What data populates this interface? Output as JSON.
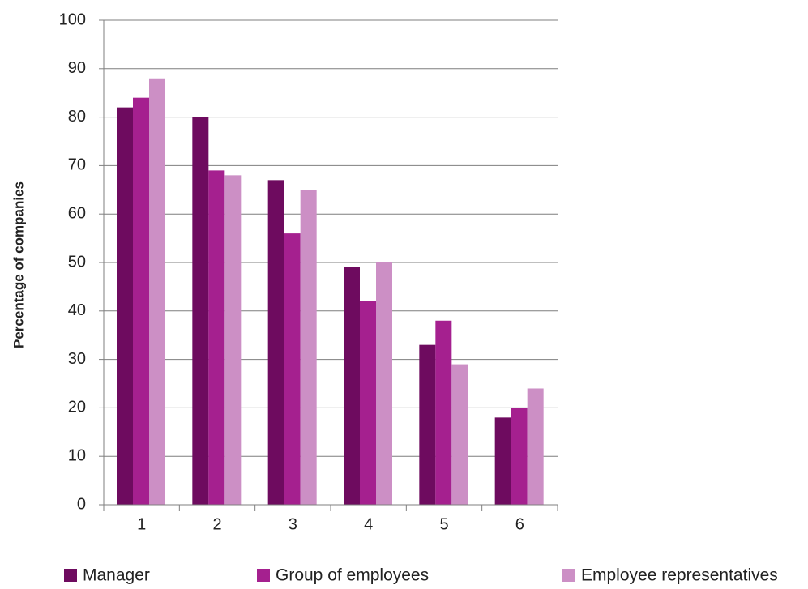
{
  "chart_data": {
    "type": "bar",
    "categories": [
      "1",
      "2",
      "3",
      "4",
      "5",
      "6"
    ],
    "series": [
      {
        "name": "Manager",
        "values": [
          82,
          80,
          67,
          49,
          33,
          18
        ],
        "color": "#6e0b5f"
      },
      {
        "name": "Group of employees",
        "values": [
          84,
          69,
          56,
          42,
          38,
          20
        ],
        "color": "#a5208f"
      },
      {
        "name": "Employee representatives",
        "values": [
          88,
          68,
          65,
          50,
          29,
          24
        ],
        "color": "#cc8fc5"
      }
    ],
    "title": "",
    "xlabel": "",
    "ylabel": "Percentage of companies",
    "ylim": [
      0,
      100
    ],
    "yticks": [
      "0",
      "10",
      "20",
      "30",
      "40",
      "50",
      "60",
      "70",
      "80",
      "90",
      "100"
    ],
    "grid": true,
    "legend_position": "bottom",
    "colors": {
      "grid": "#7f7f7f",
      "axis": "#7f7f7f",
      "text": "#222222"
    }
  }
}
